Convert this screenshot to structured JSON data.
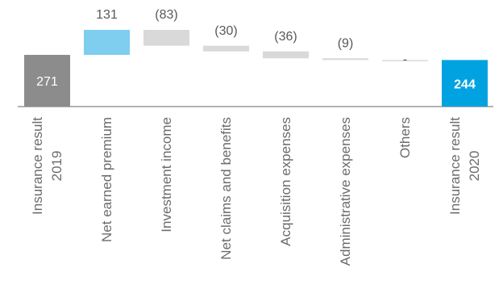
{
  "chart_data": {
    "type": "waterfall",
    "categories": [
      "Insurance result\n2019",
      "Net earned premium",
      "Investment income",
      "Net claims and benefits",
      "Acquisition expenses",
      "Administrative expenses",
      "Others",
      "Insurance result\n2020"
    ],
    "values": [
      271,
      131,
      -83,
      -30,
      -36,
      -9,
      0,
      244
    ],
    "value_labels": [
      "271",
      "131",
      "(83)",
      "(30)",
      "(36)",
      "(9)",
      "-",
      "244"
    ],
    "colors": [
      "#8c8c8c",
      "#7fcdef",
      "#d9d9d9",
      "#d9d9d9",
      "#d9d9d9",
      "#d9d9d9",
      "#d9d9d9",
      "#00a3e0"
    ]
  }
}
